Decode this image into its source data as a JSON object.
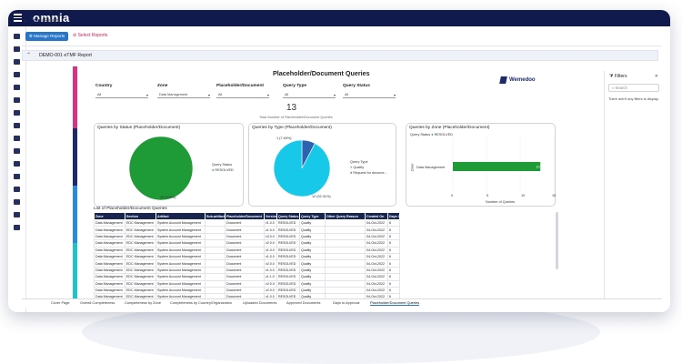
{
  "app": {
    "brand": "omnia"
  },
  "breadcrumb": {
    "home": "Home",
    "current": "Reports"
  },
  "toolbar": {
    "manage_label": "Manage Reports",
    "select_label": "Select Reports"
  },
  "report": {
    "title": "DEMO-001 eTMF Report"
  },
  "dashboard": {
    "title": "Placeholder/Document Queries",
    "brand": "Wemedoo",
    "kpi_value": "13",
    "kpi_caption": "Total Number of Placeholder/Document Queries"
  },
  "filters_row": [
    {
      "label": "Country",
      "value": "All"
    },
    {
      "label": "Zone",
      "value": "Data Management"
    },
    {
      "label": "Placeholder/Document",
      "value": "All"
    },
    {
      "label": "Query Type",
      "value": "All"
    },
    {
      "label": "Query Status",
      "value": "All"
    }
  ],
  "panels": {
    "status": {
      "title": "Queries by Status (Placeholder/Document)",
      "legend_title": "Query Status",
      "legend_item": "RESOLVED",
      "slice_label": "13 (100%)"
    },
    "type": {
      "title": "Queries by Type (Placeholder/Document)",
      "legend_title": "Query Type",
      "legend_items": [
        "Quality",
        "Request for docume..."
      ],
      "label_small": "1 (7.69%)",
      "label_large": "12 (92.31%)"
    },
    "zone": {
      "title": "Queries by Zone (Placeholder/Document)",
      "status_label": "Query Status",
      "status_value": "RESOLVED",
      "y_axis_label": "Zone",
      "category": "Data Management",
      "bar_value": "13",
      "x_ticks": [
        "0",
        "5",
        "10",
        "15"
      ],
      "x_axis_label": "Number of Queries"
    }
  },
  "chart_data": [
    {
      "type": "pie",
      "title": "Queries by Status (Placeholder/Document)",
      "legend_title": "Query Status",
      "slices": [
        {
          "label": "RESOLVED",
          "value": 13,
          "percent": 100
        }
      ],
      "colors": [
        "#1e9a36"
      ]
    },
    {
      "type": "pie",
      "title": "Queries by Type (Placeholder/Document)",
      "legend_title": "Query Type",
      "slices": [
        {
          "label": "Quality",
          "value": 12,
          "percent": 92.31
        },
        {
          "label": "Request for docume...",
          "value": 1,
          "percent": 7.69
        }
      ],
      "colors": [
        "#18c8e8",
        "#2b63b0"
      ]
    },
    {
      "type": "bar",
      "title": "Queries by Zone (Placeholder/Document)",
      "orientation": "horizontal",
      "categories": [
        "Data Management"
      ],
      "series": [
        {
          "name": "RESOLVED",
          "values": [
            13
          ]
        }
      ],
      "xlabel": "Number of Queries",
      "ylabel": "Zone",
      "xlim": [
        0,
        15
      ],
      "color": "#1e9a36"
    }
  ],
  "table": {
    "title": "List of Placeholder/Document Queries",
    "columns": [
      "Zone",
      "Section",
      "Artifact",
      "Sub-artifact",
      "Placeholder/Document",
      "Version",
      "Query Status",
      "Query Type",
      "Other Query Reason",
      "Created On",
      "Days Open"
    ],
    "rows": [
      [
        "Data Management",
        "EDC Management",
        "System Account Management",
        "",
        "Document",
        "v1.0.0",
        "RESOLVED",
        "Quality",
        "",
        "04-Oct-2022",
        "6"
      ],
      [
        "Data Management",
        "EDC Management",
        "System Account Management",
        "",
        "Document",
        "v1.0.0",
        "RESOLVED",
        "Quality",
        "",
        "04-Oct-2022",
        "6"
      ],
      [
        "Data Management",
        "EDC Management",
        "System Account Management",
        "",
        "Document",
        "v3.0.0",
        "RESOLVED",
        "Quality",
        "",
        "04-Oct-2022",
        "6"
      ],
      [
        "Data Management",
        "EDC Management",
        "System Account Management",
        "",
        "Document",
        "v2.0.0",
        "RESOLVED",
        "Quality",
        "",
        "04-Oct-2022",
        "6"
      ],
      [
        "Data Management",
        "EDC Management",
        "System Account Management",
        "",
        "Document",
        "v1.0.0",
        "RESOLVED",
        "Quality",
        "",
        "04-Oct-2022",
        "6"
      ],
      [
        "Data Management",
        "EDC Management",
        "System Account Management",
        "",
        "Document",
        "v1.0.0",
        "RESOLVED",
        "Quality",
        "",
        "04-Oct-2022",
        "6"
      ],
      [
        "Data Management",
        "EDC Management",
        "System Account Management",
        "",
        "Document",
        "v2.0.0",
        "RESOLVED",
        "Quality",
        "",
        "04-Oct-2022",
        "6"
      ],
      [
        "Data Management",
        "EDC Management",
        "System Account Management",
        "",
        "Document",
        "v1.0.0",
        "RESOLVED",
        "Quality",
        "",
        "04-Oct-2022",
        "6"
      ],
      [
        "Data Management",
        "EDC Management",
        "System Account Management",
        "",
        "Document",
        "v1.1.0",
        "RESOLVED",
        "Quality",
        "",
        "04-Oct-2022",
        "6"
      ],
      [
        "Data Management",
        "EDC Management",
        "System Account Management",
        "",
        "Document",
        "v2.0.0",
        "RESOLVED",
        "Quality",
        "",
        "04-Oct-2022",
        "6"
      ],
      [
        "Data Management",
        "EDC Management",
        "System Account Management",
        "",
        "Document",
        "v2.0.0",
        "RESOLVED",
        "Quality",
        "",
        "04-Oct-2022",
        "6"
      ],
      [
        "Data Management",
        "EDC Management",
        "System Account Management",
        "",
        "Document",
        "v1.0.0",
        "RESOLVED",
        "Quality",
        "",
        "04-Oct-2022",
        "6"
      ]
    ]
  },
  "filters_panel": {
    "title": "Filters",
    "search_placeholder": "Search",
    "empty_text": "There aren't any filters to display."
  },
  "tabs": [
    "Cover Page",
    "Overall Completeness",
    "Completeness by Zone",
    "Completeness by Country/Organization",
    "Uploaded Documents",
    "Approved Documents",
    "Days to Approval",
    "Placeholder/Document Queries"
  ],
  "colors": {
    "topbar": "#111a4d",
    "accent": "#2876c8",
    "resolved": "#1e9a36",
    "quality": "#18c8e8",
    "request": "#2b63b0",
    "stripe": [
      "#d63384",
      "#1d2a6b",
      "#2a8bd8",
      "#21c3c9"
    ]
  }
}
